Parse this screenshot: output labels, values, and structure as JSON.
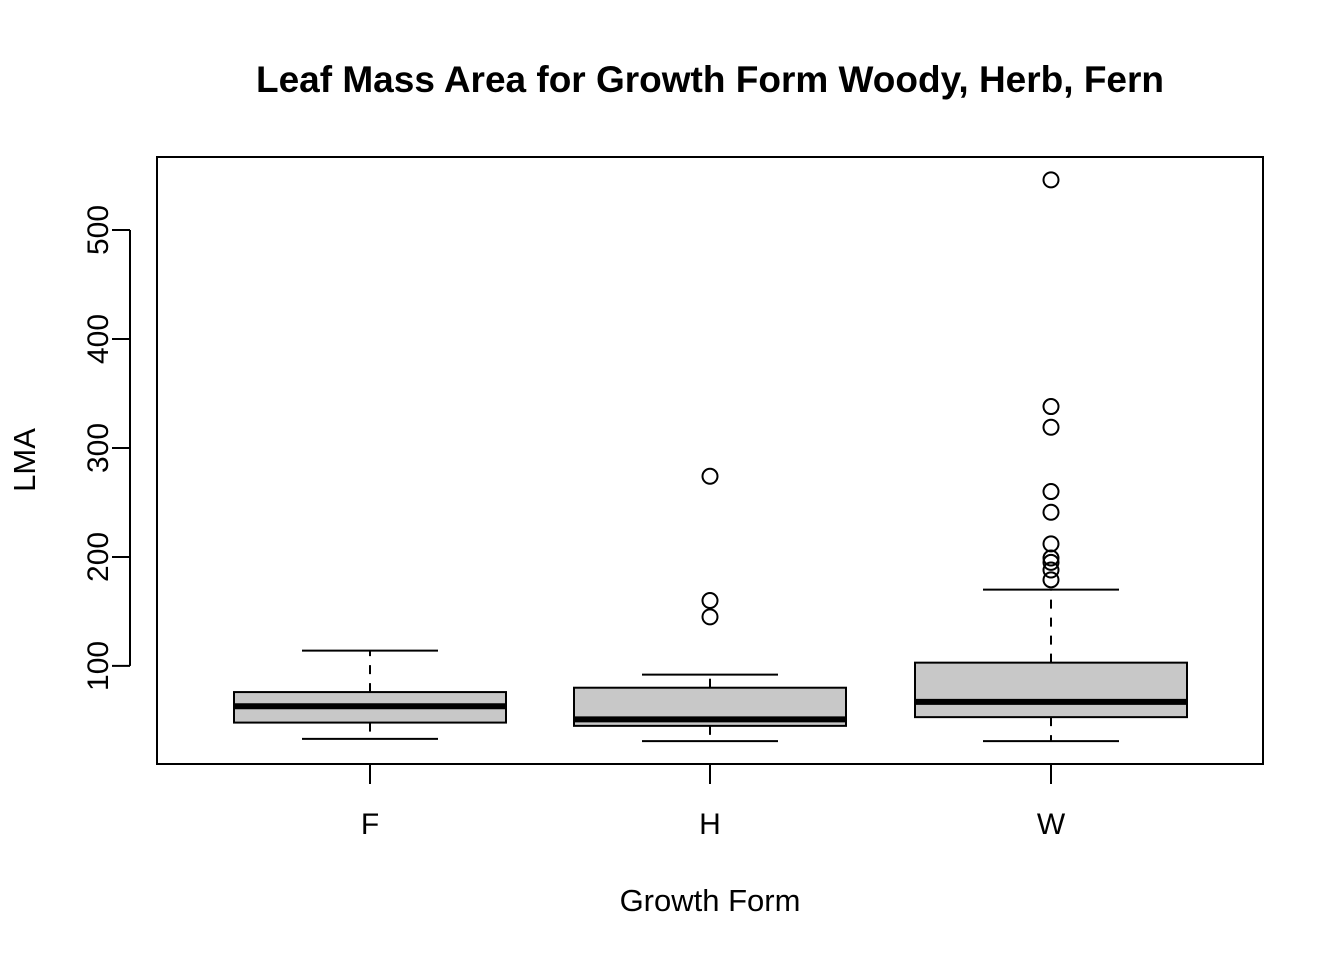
{
  "chart_data": {
    "type": "boxplot",
    "title": "Leaf Mass Area for Growth Form Woody, Herb, Fern",
    "xlabel": "Growth Form",
    "ylabel": "LMA",
    "categories": [
      "F",
      "H",
      "W"
    ],
    "ylim": [
      10,
      567
    ],
    "yticks": [
      100,
      200,
      300,
      400,
      500
    ],
    "ytick_labels": [
      "100",
      "200",
      "300",
      "400",
      "500"
    ],
    "box_fill": "#c8c8c8",
    "line_color": "#000000",
    "boxes": [
      {
        "category": "F",
        "whisker_low": 33,
        "q1": 48,
        "median": 63,
        "q3": 76,
        "whisker_high": 114,
        "outliers": []
      },
      {
        "category": "H",
        "whisker_low": 31,
        "q1": 45,
        "median": 51,
        "q3": 80,
        "whisker_high": 92,
        "outliers": [
          145,
          160,
          274
        ]
      },
      {
        "category": "W",
        "whisker_low": 31,
        "q1": 53,
        "median": 67,
        "q3": 103,
        "whisker_high": 170,
        "outliers": [
          179,
          188,
          195,
          199,
          212,
          241,
          260,
          319,
          338,
          546
        ]
      }
    ]
  }
}
